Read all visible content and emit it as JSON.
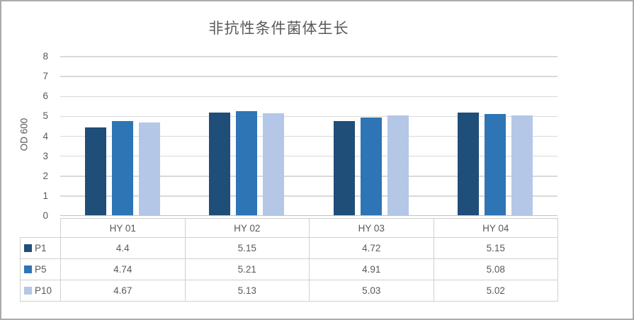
{
  "title": "非抗性条件菌体生长",
  "colors": {
    "text": "#595959",
    "gridline": "#d9d9d9",
    "axis_line": "#c3c3c3",
    "table_border": "#d0d0d0",
    "canvas_border": "#ababab",
    "series_p1": "#1f4e79",
    "series_p5": "#2e75b6",
    "series_p10": "#b4c7e7"
  },
  "chart_data": {
    "type": "bar",
    "title": "非抗性条件菌体生长",
    "categories": [
      "HY 01",
      "HY 02",
      "HY 03",
      "HY 04"
    ],
    "series": [
      {
        "name": "P1",
        "color": "#1f4e79",
        "values": [
          4.4,
          5.15,
          4.72,
          5.15
        ]
      },
      {
        "name": "P5",
        "color": "#2e75b6",
        "values": [
          4.74,
          5.21,
          4.91,
          5.08
        ]
      },
      {
        "name": "P10",
        "color": "#b4c7e7",
        "values": [
          4.67,
          5.13,
          5.03,
          5.02
        ]
      }
    ],
    "xlabel": "",
    "ylabel": "OD 600",
    "ylim": [
      0,
      8
    ],
    "ytick_step": 1,
    "yticks": [
      "0",
      "1",
      "2",
      "3",
      "4",
      "5",
      "6",
      "7",
      "8"
    ],
    "grid": true,
    "legend_position": "data-table-left",
    "data_table_shown": true
  }
}
